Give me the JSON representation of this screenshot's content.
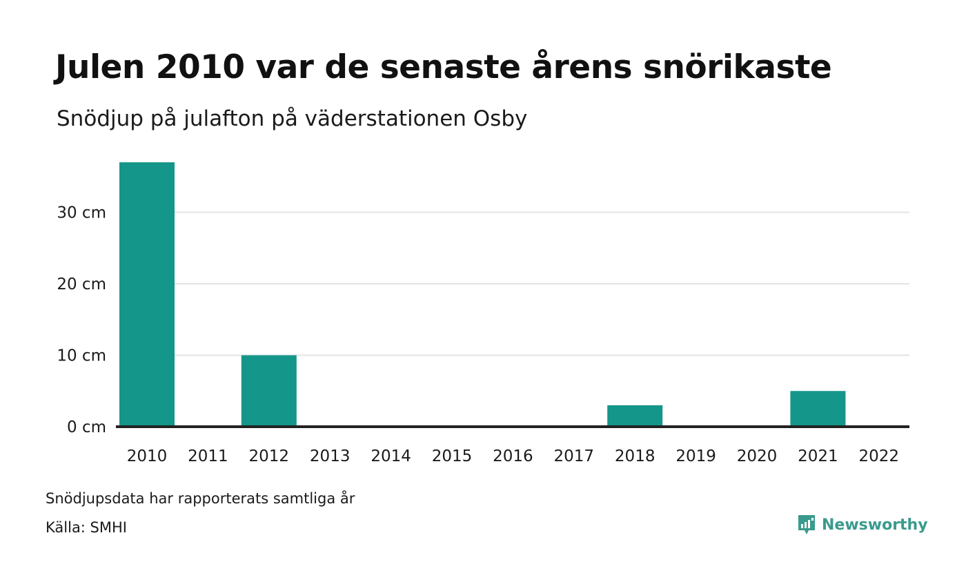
{
  "title": "Julen 2010 var de senaste årens snörikaste",
  "subtitle": "Snödjup på julafton på väderstationen Osby",
  "note": "Snödjupsdata har rapporterats samtliga år",
  "source": "Källa: SMHI",
  "brand": "Newsworthy",
  "colors": {
    "bar": "#14968a",
    "grid": "#e3e3e3",
    "baseline": "#222222",
    "brand": "#3a9a8d"
  },
  "chart_data": {
    "type": "bar",
    "title": "Julen 2010 var de senaste årens snörikaste",
    "subtitle": "Snödjup på julafton på väderstationen Osby",
    "xlabel": "",
    "ylabel": "",
    "categories": [
      "2010",
      "2011",
      "2012",
      "2013",
      "2014",
      "2015",
      "2016",
      "2017",
      "2018",
      "2019",
      "2020",
      "2021",
      "2022"
    ],
    "values": [
      37,
      0,
      10,
      0,
      0,
      0,
      0,
      0,
      3,
      0,
      0,
      5,
      0
    ],
    "ylim": [
      0,
      37
    ],
    "yticks": [
      0,
      10,
      20,
      30
    ],
    "ytick_labels": [
      "0 cm",
      "10 cm",
      "20 cm",
      "30 cm"
    ],
    "grid": true
  }
}
